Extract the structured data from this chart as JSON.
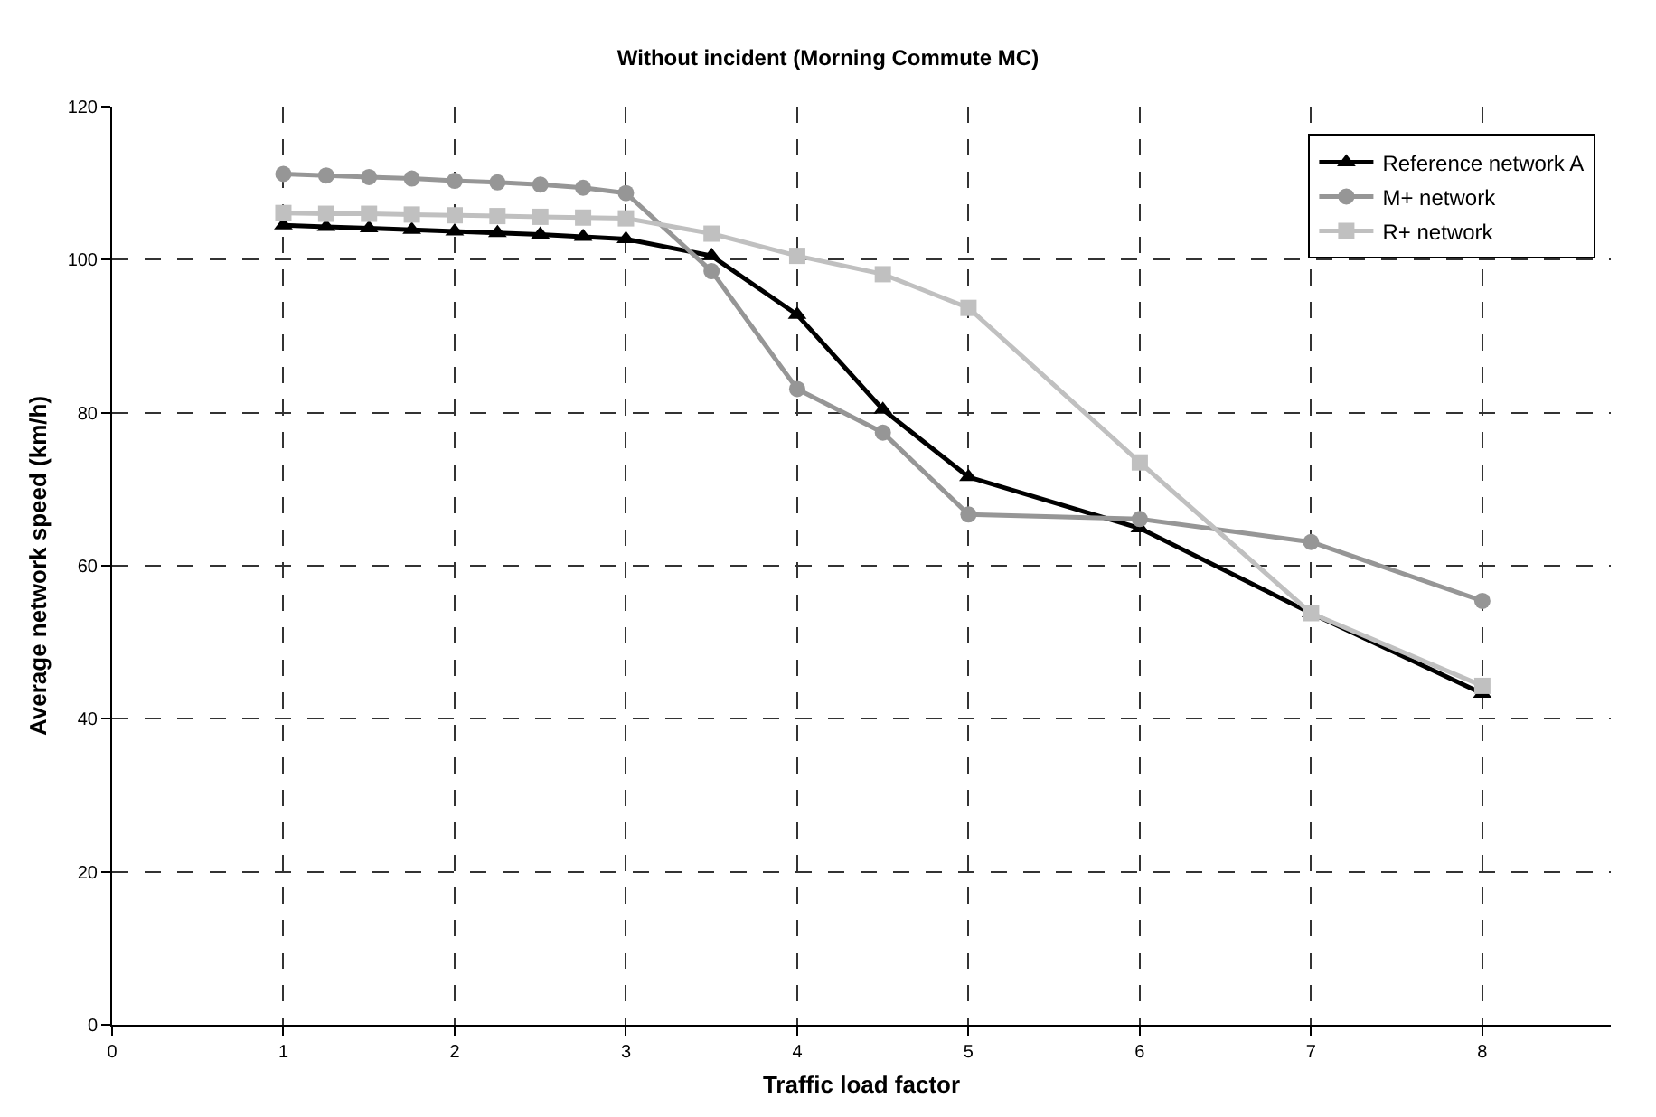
{
  "chart_data": {
    "type": "line",
    "title": "Without incident (Morning Commute MC)",
    "xlabel": "Traffic load factor",
    "ylabel": "Average network speed (km/h)",
    "x": [
      1,
      1.25,
      1.5,
      1.75,
      2,
      2.25,
      2.5,
      2.75,
      3,
      3.5,
      4,
      4.5,
      5,
      6,
      7,
      8
    ],
    "series": [
      {
        "name": "Reference network A",
        "color": "#000000",
        "marker": "triangle",
        "values": [
          104.5,
          104.3,
          104.1,
          103.9,
          103.7,
          103.5,
          103.3,
          103.0,
          102.7,
          100.5,
          92.8,
          80.4,
          71.6,
          64.9,
          53.8,
          43.3
        ]
      },
      {
        "name": "M+ network",
        "color": "#969696",
        "marker": "circle",
        "values": [
          111.2,
          111.0,
          110.8,
          110.6,
          110.3,
          110.1,
          109.8,
          109.4,
          108.7,
          98.5,
          83.1,
          77.4,
          66.7,
          66.1,
          63.1,
          55.4
        ]
      },
      {
        "name": "R+ network",
        "color": "#c0c0c0",
        "marker": "square",
        "values": [
          106.1,
          106.0,
          106.0,
          105.9,
          105.8,
          105.7,
          105.6,
          105.5,
          105.4,
          103.4,
          100.5,
          98.1,
          93.7,
          73.5,
          53.8,
          44.3
        ]
      }
    ],
    "xlim": [
      0,
      8.75
    ],
    "xticks": [
      0,
      1,
      2,
      3,
      4,
      5,
      6,
      7,
      8
    ],
    "ylim": [
      0,
      120
    ],
    "yticks": [
      0,
      20,
      40,
      60,
      80,
      100,
      120
    ],
    "grid": true,
    "legend": "top right",
    "line_style": "solid"
  }
}
